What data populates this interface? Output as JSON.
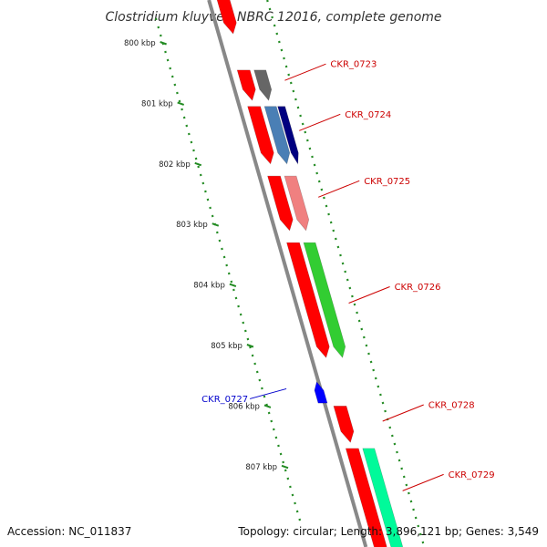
{
  "title": "Clostridium kluyveri NBRC 12016, complete genome",
  "footer": {
    "accession": "Accession: NC_011837",
    "summary": "Topology: circular; Length: 3,896,121 bp; Genes: 3,549"
  },
  "colors": {
    "backbone": "#888888",
    "cds": "#ff0000",
    "ruler": "#228b22",
    "label_forward": "#cc0000",
    "label_reverse": "#0000cc"
  },
  "ruler": {
    "ticks": [
      {
        "label": "800 kbp",
        "kbp": 800
      },
      {
        "label": "801 kbp",
        "kbp": 801
      },
      {
        "label": "802 kbp",
        "kbp": 802
      },
      {
        "label": "803 kbp",
        "kbp": 803
      },
      {
        "label": "804 kbp",
        "kbp": 804
      },
      {
        "label": "805 kbp",
        "kbp": 805
      },
      {
        "label": "806 kbp",
        "kbp": 806
      },
      {
        "label": "807 kbp",
        "kbp": 807
      }
    ]
  },
  "genes": [
    {
      "label": "",
      "start": 798.3,
      "end": 799.85,
      "strand": "+",
      "color": "#ff0000",
      "lane": "cds"
    },
    {
      "label": "CKR_0723",
      "start": 800.45,
      "end": 800.95,
      "strand": "+",
      "color": "#ff0000",
      "lane": "cds"
    },
    {
      "label": "CKR_0723",
      "start": 800.45,
      "end": 800.95,
      "strand": "+",
      "color": "#666666",
      "lane": "gene"
    },
    {
      "label": "CKR_0724",
      "start": 801.05,
      "end": 802.0,
      "strand": "+",
      "color": "#ff0000",
      "lane": "cds"
    },
    {
      "label": "CKR_0724",
      "start": 801.05,
      "end": 802.0,
      "strand": "+",
      "color": "#4a7fb5",
      "lane": "gene"
    },
    {
      "label": "CKR_0724",
      "start": 801.05,
      "end": 802.0,
      "strand": "+",
      "color": "#000080",
      "lane": "gene2"
    },
    {
      "label": "CKR_0725",
      "start": 802.2,
      "end": 803.1,
      "strand": "+",
      "color": "#ff0000",
      "lane": "cds"
    },
    {
      "label": "CKR_0725",
      "start": 802.2,
      "end": 803.1,
      "strand": "+",
      "color": "#f08080",
      "lane": "gene"
    },
    {
      "label": "CKR_0726",
      "start": 803.3,
      "end": 805.2,
      "strand": "+",
      "color": "#ff0000",
      "lane": "cds"
    },
    {
      "label": "CKR_0726",
      "start": 803.3,
      "end": 805.2,
      "strand": "+",
      "color": "#32cd32",
      "lane": "gene"
    },
    {
      "label": "CKR_0727",
      "start": 805.6,
      "end": 805.95,
      "strand": "-",
      "color": "#0000ff",
      "lane": "rev"
    },
    {
      "label": "CKR_0728",
      "start": 806.0,
      "end": 806.6,
      "strand": "+",
      "color": "#ff0000",
      "lane": "cds"
    },
    {
      "label": "CKR_0729",
      "start": 806.7,
      "end": 808.5,
      "strand": "+",
      "color": "#ff0000",
      "lane": "cds"
    },
    {
      "label": "CKR_0729",
      "start": 806.7,
      "end": 808.5,
      "strand": "+",
      "color": "#00fa9a",
      "lane": "gene"
    }
  ],
  "gene_labels": [
    {
      "name": "CKR_0723",
      "kbp": 800.62,
      "side": "right",
      "color": "#cc0000"
    },
    {
      "name": "CKR_0724",
      "kbp": 801.45,
      "side": "right",
      "color": "#cc0000"
    },
    {
      "name": "CKR_0725",
      "kbp": 802.55,
      "side": "right",
      "color": "#cc0000"
    },
    {
      "name": "CKR_0726",
      "kbp": 804.3,
      "side": "right",
      "color": "#cc0000"
    },
    {
      "name": "CKR_0727",
      "kbp": 805.85,
      "side": "left",
      "color": "#0000cc"
    },
    {
      "name": "CKR_0728",
      "kbp": 806.25,
      "side": "right",
      "color": "#cc0000"
    },
    {
      "name": "CKR_0729",
      "kbp": 807.4,
      "side": "right",
      "color": "#cc0000"
    }
  ]
}
